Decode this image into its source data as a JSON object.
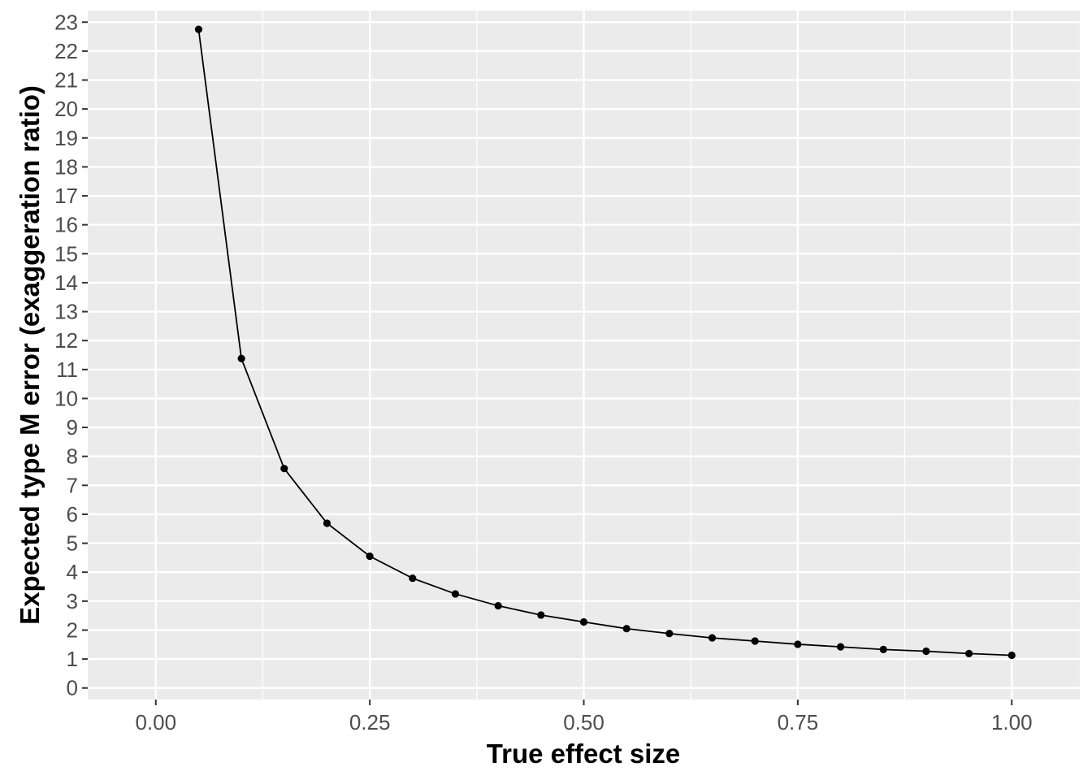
{
  "chart_data": {
    "type": "line",
    "title": "",
    "xlabel": "True effect size",
    "ylabel": "Expected type M error (exaggeration ratio)",
    "xlim": [
      -0.0795,
      1.0795
    ],
    "ylim": [
      -0.4,
      23.4
    ],
    "x_ticks": [
      0.0,
      0.25,
      0.5,
      0.75,
      1.0
    ],
    "x_tick_labels": [
      "0.00",
      "0.25",
      "0.50",
      "0.75",
      "1.00"
    ],
    "x_minor_ticks": [
      0.125,
      0.375,
      0.625,
      0.875
    ],
    "y_ticks": [
      0,
      1,
      2,
      3,
      4,
      5,
      6,
      7,
      8,
      9,
      10,
      11,
      12,
      13,
      14,
      15,
      16,
      17,
      18,
      19,
      20,
      21,
      22,
      23
    ],
    "y_tick_labels": [
      "0",
      "1",
      "2",
      "3",
      "4",
      "5",
      "6",
      "7",
      "8",
      "9",
      "10",
      "11",
      "12",
      "13",
      "14",
      "15",
      "16",
      "17",
      "18",
      "19",
      "20",
      "21",
      "22",
      "23"
    ],
    "grid": true,
    "legend": "none",
    "colors": {
      "panel_background": "#ebebeb",
      "grid": "#ffffff",
      "line": "#000000",
      "point": "#000000"
    },
    "series": [
      {
        "x": [
          0.05,
          0.1,
          0.15,
          0.2,
          0.25,
          0.3,
          0.35,
          0.4,
          0.45,
          0.5,
          0.55,
          0.6,
          0.65,
          0.7,
          0.75,
          0.8,
          0.85,
          0.9,
          0.95,
          1.0
        ],
        "y": [
          22.75,
          11.38,
          7.58,
          5.69,
          4.55,
          3.79,
          3.25,
          2.84,
          2.52,
          2.28,
          2.05,
          1.88,
          1.73,
          1.62,
          1.51,
          1.42,
          1.33,
          1.27,
          1.19,
          1.13
        ]
      }
    ]
  }
}
